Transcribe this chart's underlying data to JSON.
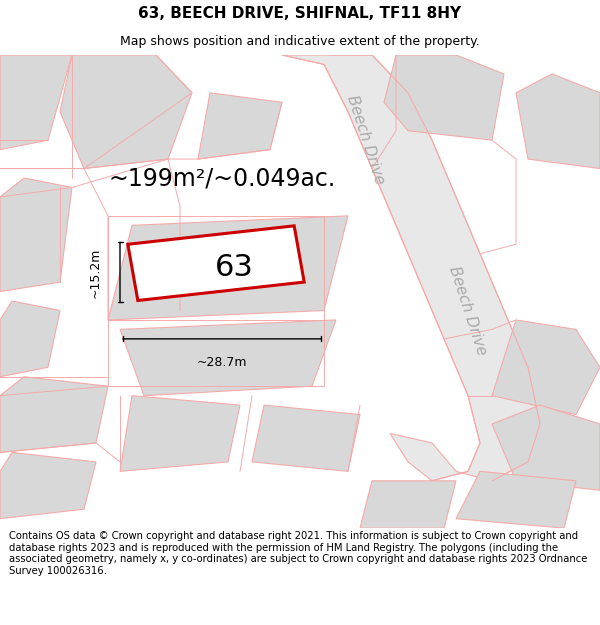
{
  "title_line1": "63, BEECH DRIVE, SHIFNAL, TF11 8HY",
  "title_line2": "Map shows position and indicative extent of the property.",
  "area_text": "~199m²/~0.049ac.",
  "label_63": "63",
  "dim_width": "~28.7m",
  "dim_height": "~15.2m",
  "road_label1": "Beech Drive",
  "road_label2": "Beech Drive",
  "footer_text": "Contains OS data © Crown copyright and database right 2021. This information is subject to Crown copyright and database rights 2023 and is reproduced with the permission of HM Land Registry. The polygons (including the associated geometry, namely x, y co-ordinates) are subject to Crown copyright and database rights 2023 Ordnance Survey 100026316.",
  "bg_color": "#ffffff",
  "map_bg": "#ffffff",
  "plot_outline_color": "#cc0000",
  "road_fill_color": "#e8e8e8",
  "road_line_color": "#f5aaaa",
  "building_fill_color": "#d8d8d8",
  "building_line_color": "#f5aaaa",
  "title_fontsize": 11,
  "subtitle_fontsize": 9,
  "area_fontsize": 17,
  "label_fontsize": 22,
  "footer_fontsize": 7.2,
  "dim_fontsize": 9,
  "road_label_fontsize": 11
}
